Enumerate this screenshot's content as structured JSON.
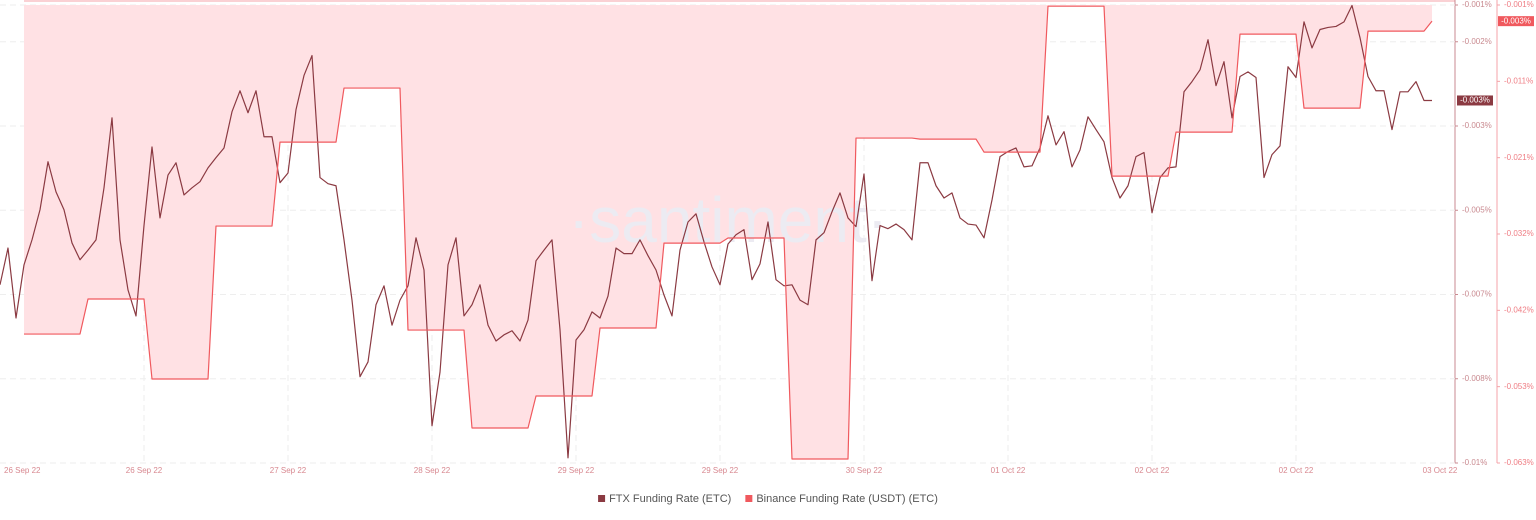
{
  "chart_data": {
    "type": "line",
    "watermark": "·santiment·",
    "grid": true,
    "legend": "bottom",
    "ylim": [
      -0.01,
      -0.00103
    ],
    "yticks": [
      {
        "value": -0.01,
        "label": "-0.01%"
      },
      {
        "value": -0.00835,
        "label": "-0.008%"
      },
      {
        "value": -0.0067,
        "label": "-0.007%"
      },
      {
        "value": -0.00505,
        "label": "-0.005%"
      },
      {
        "value": -0.0034,
        "label": "-0.003%"
      },
      {
        "value": -0.00175,
        "label": "-0.002%"
      },
      {
        "value": -0.00103,
        "label": "-0.001%"
      }
    ],
    "y2lim": [
      -0.063,
      -0.0006
    ],
    "y2ticks": [
      {
        "value": -0.063,
        "label": "-0.063%"
      },
      {
        "value": -0.0526,
        "label": "-0.053%"
      },
      {
        "value": -0.0422,
        "label": "-0.042%"
      },
      {
        "value": -0.0318,
        "label": "-0.032%"
      },
      {
        "value": -0.0214,
        "label": "-0.021%"
      },
      {
        "value": -0.011,
        "label": "-0.011%"
      },
      {
        "value": -0.0006,
        "label": "-0.001%"
      }
    ],
    "xticks": [
      {
        "value": 0,
        "label": "26 Sep 22"
      },
      {
        "value": 18,
        "label": "26 Sep 22"
      },
      {
        "value": 36,
        "label": "27 Sep 22"
      },
      {
        "value": 54,
        "label": "28 Sep 22"
      },
      {
        "value": 72,
        "label": "29 Sep 22"
      },
      {
        "value": 90,
        "label": "29 Sep 22"
      },
      {
        "value": 108,
        "label": "30 Sep 22"
      },
      {
        "value": 126,
        "label": "01 Oct 22"
      },
      {
        "value": 144,
        "label": "02 Oct 22"
      },
      {
        "value": 162,
        "label": "02 Oct 22"
      },
      {
        "value": 180,
        "label": "03 Oct 22"
      }
    ],
    "series": [
      {
        "name": "FTX Funding Rate (ETC)",
        "color": "#8b3a42",
        "axis": "y",
        "last_label": "-0.003%",
        "values": [
          -0.00651,
          -0.00579,
          -0.00716,
          -0.00612,
          -0.00563,
          -0.00504,
          -0.0041,
          -0.00469,
          -0.00504,
          -0.00569,
          -0.00602,
          -0.00583,
          -0.00563,
          -0.00461,
          -0.00324,
          -0.00563,
          -0.00661,
          -0.00712,
          -0.00535,
          -0.00381,
          -0.0052,
          -0.00436,
          -0.00412,
          -0.00475,
          -0.00461,
          -0.00449,
          -0.00422,
          -0.00402,
          -0.00383,
          -0.00312,
          -0.00271,
          -0.00314,
          -0.00271,
          -0.00361,
          -0.00361,
          -0.00451,
          -0.00432,
          -0.00308,
          -0.00241,
          -0.00202,
          -0.00441,
          -0.00453,
          -0.00457,
          -0.00563,
          -0.00681,
          -0.00831,
          -0.00802,
          -0.0069,
          -0.00653,
          -0.0073,
          -0.00681,
          -0.00653,
          -0.00559,
          -0.00622,
          -0.00927,
          -0.00822,
          -0.00612,
          -0.00559,
          -0.00712,
          -0.0069,
          -0.00651,
          -0.0073,
          -0.00761,
          -0.00749,
          -0.00741,
          -0.00761,
          -0.0072,
          -0.00604,
          -0.00583,
          -0.00563,
          -0.00739,
          -0.0099,
          -0.00759,
          -0.00739,
          -0.00704,
          -0.00716,
          -0.00673,
          -0.00579,
          -0.0059,
          -0.0059,
          -0.00563,
          -0.00594,
          -0.00622,
          -0.00671,
          -0.00712,
          -0.00583,
          -0.00528,
          -0.00512,
          -0.00567,
          -0.00616,
          -0.00651,
          -0.00571,
          -0.00553,
          -0.00543,
          -0.00641,
          -0.0061,
          -0.00528,
          -0.00641,
          -0.00653,
          -0.00651,
          -0.00681,
          -0.0069,
          -0.00563,
          -0.00549,
          -0.00508,
          -0.00471,
          -0.0052,
          -0.00537,
          -0.00434,
          -0.00643,
          -0.00535,
          -0.00541,
          -0.00532,
          -0.00543,
          -0.00563,
          -0.00412,
          -0.00412,
          -0.00457,
          -0.00481,
          -0.00471,
          -0.0052,
          -0.00532,
          -0.00534,
          -0.00559,
          -0.00485,
          -0.004,
          -0.0039,
          -0.00383,
          -0.0042,
          -0.00418,
          -0.00383,
          -0.0032,
          -0.00377,
          -0.00351,
          -0.0042,
          -0.00387,
          -0.00322,
          -0.00347,
          -0.00371,
          -0.00441,
          -0.00481,
          -0.00457,
          -0.004,
          -0.00392,
          -0.0051,
          -0.00441,
          -0.00422,
          -0.0042,
          -0.00273,
          -0.00253,
          -0.0023,
          -0.00171,
          -0.00261,
          -0.00214,
          -0.00324,
          -0.00243,
          -0.00234,
          -0.00245,
          -0.00441,
          -0.00396,
          -0.00379,
          -0.00224,
          -0.00245,
          -0.00136,
          -0.00187,
          -0.00151,
          -0.00147,
          -0.00145,
          -0.00136,
          -0.00104,
          -0.00167,
          -0.00243,
          -0.00271,
          -0.00271,
          -0.00347,
          -0.00273,
          -0.00273,
          -0.00253,
          -0.0029,
          -0.0029
        ]
      },
      {
        "name": "Binance Funding Rate (USDT) (ETC)",
        "color": "#f0595e",
        "fill_color": "#ffe1e4",
        "axis": "y2",
        "last_label": "-0.003%",
        "values": [
          null,
          null,
          null,
          -0.04543,
          -0.04543,
          -0.04543,
          -0.04543,
          -0.04543,
          -0.04543,
          -0.04543,
          -0.04543,
          -0.04066,
          -0.04066,
          -0.04066,
          -0.04066,
          -0.04066,
          -0.04066,
          -0.04066,
          -0.04066,
          -0.05156,
          -0.05156,
          -0.05156,
          -0.05156,
          -0.05156,
          -0.05156,
          -0.05156,
          -0.05156,
          -0.03072,
          -0.03072,
          -0.03072,
          -0.03072,
          -0.03072,
          -0.03072,
          -0.03072,
          -0.03072,
          -0.01928,
          -0.01928,
          -0.01928,
          -0.01928,
          -0.01928,
          -0.01928,
          -0.01928,
          -0.01928,
          -0.01192,
          -0.01192,
          -0.01192,
          -0.01192,
          -0.01192,
          -0.01192,
          -0.01192,
          -0.01192,
          -0.04489,
          -0.04489,
          -0.04489,
          -0.04489,
          -0.04489,
          -0.04489,
          -0.04489,
          -0.04489,
          -0.05823,
          -0.05823,
          -0.05823,
          -0.05823,
          -0.05823,
          -0.05823,
          -0.05823,
          -0.05823,
          -0.05387,
          -0.05387,
          -0.05387,
          -0.05387,
          -0.05387,
          -0.05387,
          -0.05387,
          -0.05387,
          -0.04461,
          -0.04461,
          -0.04461,
          -0.04461,
          -0.04461,
          -0.04461,
          -0.04461,
          -0.04461,
          -0.03304,
          -0.03304,
          -0.03304,
          -0.03304,
          -0.03304,
          -0.03304,
          -0.03304,
          -0.03304,
          -0.03235,
          -0.03235,
          -0.03235,
          -0.03235,
          -0.03235,
          -0.03235,
          -0.03235,
          -0.03235,
          -0.06246,
          -0.06246,
          -0.06246,
          -0.06246,
          -0.06246,
          -0.06246,
          -0.06246,
          -0.06246,
          -0.01873,
          -0.01873,
          -0.01873,
          -0.01873,
          -0.01873,
          -0.01873,
          -0.01873,
          -0.01873,
          -0.01887,
          -0.01887,
          -0.01887,
          -0.01887,
          -0.01887,
          -0.01887,
          -0.01887,
          -0.01887,
          -0.02064,
          -0.02064,
          -0.02064,
          -0.02064,
          -0.02064,
          -0.02064,
          -0.02064,
          -0.02064,
          -0.00076,
          -0.00076,
          -0.00076,
          -0.00076,
          -0.00076,
          -0.00076,
          -0.00076,
          -0.00076,
          -0.02391,
          -0.02391,
          -0.02391,
          -0.02391,
          -0.02391,
          -0.02391,
          -0.02391,
          -0.02391,
          -0.01792,
          -0.01792,
          -0.01792,
          -0.01792,
          -0.01792,
          -0.01792,
          -0.01792,
          -0.01792,
          -0.00457,
          -0.00457,
          -0.00457,
          -0.00457,
          -0.00457,
          -0.00457,
          -0.00457,
          -0.00457,
          -0.01465,
          -0.01465,
          -0.01465,
          -0.01465,
          -0.01465,
          -0.01465,
          -0.01465,
          -0.01465,
          -0.00416,
          -0.00416,
          -0.00416,
          -0.00416,
          -0.00416,
          -0.00416,
          -0.00416,
          -0.00416,
          -0.0028
        ]
      }
    ]
  }
}
